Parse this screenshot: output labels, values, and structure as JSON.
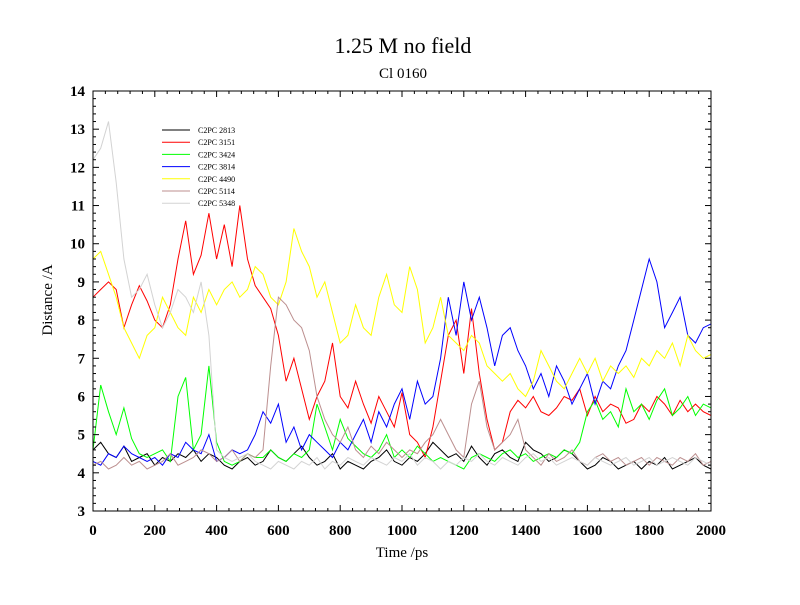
{
  "chart_data": {
    "type": "line",
    "title": "1.25 M no field",
    "subtitle": "Cl 0160",
    "xlabel": "Time /ps",
    "ylabel": "Distance /A",
    "xlim": [
      0,
      2000
    ],
    "ylim": [
      3,
      14
    ],
    "x_ticks": [
      0,
      200,
      400,
      600,
      800,
      1000,
      1200,
      1400,
      1600,
      1800,
      2000
    ],
    "y_ticks": [
      3,
      4,
      5,
      6,
      7,
      8,
      9,
      10,
      11,
      12,
      13,
      14
    ],
    "grid": false,
    "legend_position": "top-left",
    "series": [
      {
        "name": "C2PC 2813",
        "color": "#000000",
        "x": [
          0,
          25,
          50,
          75,
          100,
          125,
          150,
          175,
          200,
          225,
          250,
          275,
          300,
          325,
          350,
          375,
          400,
          425,
          450,
          475,
          500,
          525,
          550,
          575,
          600,
          625,
          650,
          675,
          700,
          725,
          750,
          775,
          800,
          825,
          850,
          875,
          900,
          925,
          950,
          975,
          1000,
          1025,
          1050,
          1075,
          1100,
          1125,
          1150,
          1175,
          1200,
          1225,
          1250,
          1275,
          1300,
          1325,
          1350,
          1375,
          1400,
          1425,
          1450,
          1475,
          1500,
          1525,
          1550,
          1575,
          1600,
          1625,
          1650,
          1675,
          1700,
          1725,
          1750,
          1775,
          1800,
          1825,
          1850,
          1875,
          1900,
          1925,
          1950,
          1975,
          2000
        ],
        "y": [
          4.6,
          4.8,
          4.5,
          4.4,
          4.7,
          4.3,
          4.4,
          4.5,
          4.2,
          4.4,
          4.3,
          4.5,
          4.4,
          4.6,
          4.3,
          4.5,
          4.4,
          4.2,
          4.1,
          4.3,
          4.4,
          4.2,
          4.3,
          4.6,
          4.4,
          4.3,
          4.5,
          4.7,
          4.4,
          4.2,
          4.3,
          4.5,
          4.1,
          4.3,
          4.2,
          4.1,
          4.3,
          4.4,
          4.6,
          4.3,
          4.2,
          4.4,
          4.3,
          4.5,
          4.8,
          4.6,
          4.4,
          4.5,
          4.3,
          4.7,
          4.4,
          4.2,
          4.5,
          4.6,
          4.4,
          4.3,
          4.8,
          4.6,
          4.5,
          4.3,
          4.4,
          4.6,
          4.5,
          4.3,
          4.1,
          4.2,
          4.4,
          4.3,
          4.1,
          4.2,
          4.3,
          4.1,
          4.3,
          4.2,
          4.4,
          4.1,
          4.2,
          4.3,
          4.4,
          4.2,
          4.1
        ]
      },
      {
        "name": "C2PC 3151",
        "color": "#ff0000",
        "x": [
          0,
          25,
          50,
          75,
          100,
          125,
          150,
          175,
          200,
          225,
          250,
          275,
          300,
          325,
          350,
          375,
          400,
          425,
          450,
          475,
          500,
          525,
          550,
          575,
          600,
          625,
          650,
          675,
          700,
          725,
          750,
          775,
          800,
          825,
          850,
          875,
          900,
          925,
          950,
          975,
          1000,
          1025,
          1050,
          1075,
          1100,
          1125,
          1150,
          1175,
          1200,
          1225,
          1250,
          1275,
          1300,
          1325,
          1350,
          1375,
          1400,
          1425,
          1450,
          1475,
          1500,
          1525,
          1550,
          1575,
          1600,
          1625,
          1650,
          1675,
          1700,
          1725,
          1750,
          1775,
          1800,
          1825,
          1850,
          1875,
          1900,
          1925,
          1950,
          1975,
          2000
        ],
        "y": [
          8.6,
          8.8,
          9.0,
          8.8,
          7.8,
          8.4,
          8.9,
          8.5,
          8.0,
          7.8,
          8.4,
          9.6,
          10.6,
          9.2,
          9.7,
          10.8,
          9.6,
          10.5,
          9.4,
          11.0,
          9.6,
          8.9,
          8.6,
          8.3,
          7.6,
          6.4,
          7.0,
          6.2,
          5.4,
          6.0,
          6.4,
          7.4,
          6.0,
          5.7,
          6.4,
          5.8,
          5.3,
          6.0,
          5.6,
          5.2,
          6.1,
          5.0,
          4.8,
          4.4,
          5.2,
          6.4,
          7.6,
          8.0,
          6.6,
          8.3,
          6.6,
          5.4,
          4.6,
          4.8,
          5.6,
          5.9,
          5.7,
          6.0,
          5.6,
          5.5,
          5.7,
          6.0,
          5.9,
          6.2,
          5.5,
          6.0,
          5.6,
          5.8,
          5.7,
          5.3,
          5.4,
          5.8,
          5.6,
          6.0,
          5.8,
          5.5,
          5.9,
          5.6,
          5.8,
          5.6,
          5.5
        ]
      },
      {
        "name": "C2PC 3424",
        "color": "#00ff00",
        "x": [
          0,
          25,
          50,
          75,
          100,
          125,
          150,
          175,
          200,
          225,
          250,
          275,
          300,
          325,
          350,
          375,
          400,
          425,
          450,
          475,
          500,
          525,
          550,
          575,
          600,
          625,
          650,
          675,
          700,
          725,
          750,
          775,
          800,
          825,
          850,
          875,
          900,
          925,
          950,
          975,
          1000,
          1025,
          1050,
          1075,
          1100,
          1125,
          1150,
          1175,
          1200,
          1225,
          1250,
          1275,
          1300,
          1325,
          1350,
          1375,
          1400,
          1425,
          1450,
          1475,
          1500,
          1525,
          1550,
          1575,
          1600,
          1625,
          1650,
          1675,
          1700,
          1725,
          1750,
          1775,
          1800,
          1825,
          1850,
          1875,
          1900,
          1925,
          1950,
          1975,
          2000
        ],
        "y": [
          4.6,
          6.3,
          5.6,
          5.0,
          5.7,
          4.9,
          4.5,
          4.4,
          4.5,
          4.6,
          4.3,
          6.0,
          6.5,
          4.6,
          5.0,
          6.8,
          4.8,
          4.3,
          4.2,
          4.3,
          4.5,
          4.4,
          4.4,
          4.6,
          4.4,
          4.3,
          4.5,
          4.4,
          4.6,
          5.8,
          5.2,
          4.6,
          5.4,
          4.9,
          4.7,
          4.5,
          4.4,
          4.6,
          5.0,
          4.4,
          4.6,
          4.4,
          4.7,
          4.5,
          4.3,
          4.4,
          4.3,
          4.2,
          4.1,
          4.4,
          4.5,
          4.4,
          4.3,
          4.5,
          4.6,
          4.4,
          4.5,
          4.3,
          4.4,
          4.5,
          4.4,
          4.6,
          4.5,
          4.8,
          5.6,
          5.9,
          5.4,
          5.6,
          5.2,
          6.2,
          5.6,
          5.8,
          5.4,
          5.9,
          6.2,
          5.5,
          5.7,
          6.0,
          5.5,
          5.8,
          5.7
        ]
      },
      {
        "name": "C2PC 3814",
        "color": "#0000ff",
        "x": [
          0,
          25,
          50,
          75,
          100,
          125,
          150,
          175,
          200,
          225,
          250,
          275,
          300,
          325,
          350,
          375,
          400,
          425,
          450,
          475,
          500,
          525,
          550,
          575,
          600,
          625,
          650,
          675,
          700,
          725,
          750,
          775,
          800,
          825,
          850,
          875,
          900,
          925,
          950,
          975,
          1000,
          1025,
          1050,
          1075,
          1100,
          1125,
          1150,
          1175,
          1200,
          1225,
          1250,
          1275,
          1300,
          1325,
          1350,
          1375,
          1400,
          1425,
          1450,
          1475,
          1500,
          1525,
          1550,
          1575,
          1600,
          1625,
          1650,
          1675,
          1700,
          1725,
          1750,
          1775,
          1800,
          1825,
          1850,
          1875,
          1900,
          1925,
          1950,
          1975,
          2000
        ],
        "y": [
          4.3,
          4.2,
          4.5,
          4.4,
          4.7,
          4.5,
          4.4,
          4.3,
          4.4,
          4.2,
          4.5,
          4.4,
          4.8,
          4.6,
          4.5,
          5.0,
          4.3,
          4.4,
          4.6,
          4.5,
          4.6,
          5.0,
          5.6,
          5.3,
          5.8,
          4.8,
          5.2,
          4.6,
          5.0,
          4.8,
          4.6,
          4.4,
          4.8,
          4.6,
          5.0,
          5.4,
          4.8,
          5.6,
          5.2,
          5.8,
          6.2,
          5.4,
          6.4,
          5.8,
          6.0,
          7.0,
          8.6,
          7.6,
          9.0,
          8.0,
          8.6,
          7.8,
          6.8,
          7.6,
          7.8,
          7.2,
          6.8,
          6.2,
          6.6,
          6.0,
          6.8,
          6.4,
          5.8,
          6.2,
          6.6,
          5.8,
          6.4,
          6.2,
          6.8,
          7.2,
          8.0,
          8.8,
          9.6,
          9.0,
          7.8,
          8.2,
          8.6,
          7.6,
          7.4,
          7.8,
          7.9
        ]
      },
      {
        "name": "C2PC 4490",
        "color": "#ffff00",
        "x": [
          0,
          25,
          50,
          75,
          100,
          125,
          150,
          175,
          200,
          225,
          250,
          275,
          300,
          325,
          350,
          375,
          400,
          425,
          450,
          475,
          500,
          525,
          550,
          575,
          600,
          625,
          650,
          675,
          700,
          725,
          750,
          775,
          800,
          825,
          850,
          875,
          900,
          925,
          950,
          975,
          1000,
          1025,
          1050,
          1075,
          1100,
          1125,
          1150,
          1175,
          1200,
          1225,
          1250,
          1275,
          1300,
          1325,
          1350,
          1375,
          1400,
          1425,
          1450,
          1475,
          1500,
          1525,
          1550,
          1575,
          1600,
          1625,
          1650,
          1675,
          1700,
          1725,
          1750,
          1775,
          1800,
          1825,
          1850,
          1875,
          1900,
          1925,
          1950,
          1975,
          2000
        ],
        "y": [
          9.6,
          9.8,
          9.2,
          8.6,
          7.8,
          7.4,
          7.0,
          7.6,
          7.8,
          8.6,
          8.2,
          7.8,
          7.6,
          8.6,
          8.2,
          8.8,
          8.4,
          8.8,
          9.0,
          8.6,
          8.8,
          9.4,
          9.2,
          8.6,
          8.4,
          9.0,
          10.4,
          9.8,
          9.4,
          8.6,
          9.0,
          8.2,
          7.4,
          7.6,
          8.4,
          7.8,
          7.6,
          8.6,
          9.2,
          8.4,
          8.2,
          9.4,
          8.8,
          7.4,
          7.8,
          8.6,
          7.6,
          7.4,
          7.2,
          7.6,
          7.4,
          6.8,
          6.6,
          6.4,
          6.6,
          6.2,
          6.0,
          6.4,
          7.2,
          6.8,
          6.4,
          6.2,
          6.6,
          7.0,
          6.6,
          7.0,
          6.4,
          6.8,
          6.6,
          6.8,
          6.5,
          7.0,
          6.8,
          7.2,
          7.0,
          7.4,
          6.8,
          7.6,
          7.2,
          7.0,
          7.1
        ]
      },
      {
        "name": "C2PC 5114",
        "color": "#bc8f8f",
        "x": [
          0,
          25,
          50,
          75,
          100,
          125,
          150,
          175,
          200,
          225,
          250,
          275,
          300,
          325,
          350,
          375,
          400,
          425,
          450,
          475,
          500,
          525,
          550,
          575,
          600,
          625,
          650,
          675,
          700,
          725,
          750,
          775,
          800,
          825,
          850,
          875,
          900,
          925,
          950,
          975,
          1000,
          1025,
          1050,
          1075,
          1100,
          1125,
          1150,
          1175,
          1200,
          1225,
          1250,
          1275,
          1300,
          1325,
          1350,
          1375,
          1400,
          1425,
          1450,
          1475,
          1500,
          1525,
          1550,
          1575,
          1600,
          1625,
          1650,
          1675,
          1700,
          1725,
          1750,
          1775,
          1800,
          1825,
          1850,
          1875,
          1900,
          1925,
          1950,
          1975,
          2000
        ],
        "y": [
          4.2,
          4.3,
          4.1,
          4.2,
          4.4,
          4.2,
          4.3,
          4.1,
          4.2,
          4.3,
          4.5,
          4.2,
          4.3,
          4.4,
          4.6,
          4.5,
          4.3,
          4.4,
          4.6,
          4.3,
          4.5,
          4.4,
          4.6,
          6.8,
          8.6,
          8.4,
          8.0,
          7.8,
          7.2,
          6.0,
          5.4,
          5.0,
          4.8,
          5.2,
          4.6,
          4.4,
          4.7,
          4.5,
          4.8,
          4.6,
          4.4,
          4.6,
          4.5,
          4.8,
          5.0,
          5.4,
          5.0,
          4.6,
          4.4,
          5.8,
          6.4,
          5.2,
          4.6,
          4.8,
          5.0,
          5.4,
          4.6,
          4.4,
          4.2,
          4.5,
          4.3,
          4.4,
          4.6,
          4.3,
          4.2,
          4.4,
          4.5,
          4.3,
          4.4,
          4.2,
          4.3,
          4.4,
          4.2,
          4.4,
          4.3,
          4.2,
          4.4,
          4.3,
          4.5,
          4.2,
          4.3
        ]
      },
      {
        "name": "C2PC 5348",
        "color": "#d3d3d3",
        "x": [
          0,
          25,
          50,
          75,
          100,
          125,
          150,
          175,
          200,
          225,
          250,
          275,
          300,
          325,
          350,
          375,
          400,
          425,
          450,
          475,
          500,
          525,
          550,
          575,
          600,
          625,
          650,
          675,
          700,
          725,
          750,
          775,
          800,
          825,
          850,
          875,
          900,
          925,
          950,
          975,
          1000,
          1025,
          1050,
          1075,
          1100,
          1125,
          1150,
          1175,
          1200,
          1225,
          1250,
          1275,
          1300,
          1325,
          1350,
          1375,
          1400,
          1425,
          1450,
          1475,
          1500,
          1525,
          1550,
          1575,
          1600,
          1625,
          1650,
          1675,
          1700,
          1725,
          1750,
          1775,
          1800,
          1825,
          1850,
          1875,
          1900,
          1925,
          1950,
          1975,
          2000
        ],
        "y": [
          12.2,
          12.5,
          13.2,
          11.6,
          9.6,
          8.6,
          8.8,
          9.2,
          8.4,
          7.8,
          8.2,
          8.8,
          8.6,
          8.2,
          9.0,
          7.6,
          4.6,
          4.4,
          4.3,
          4.4,
          4.5,
          4.3,
          4.2,
          4.1,
          4.3,
          4.2,
          4.1,
          4.3,
          4.2,
          4.4,
          4.1,
          4.3,
          4.2,
          4.4,
          4.3,
          4.2,
          4.4,
          4.3,
          4.2,
          4.4,
          4.3,
          4.5,
          4.2,
          4.4,
          4.3,
          4.1,
          4.3,
          4.2,
          4.4,
          4.3,
          4.5,
          4.3,
          4.2,
          4.4,
          4.3,
          4.2,
          4.4,
          4.5,
          4.3,
          4.4,
          4.2,
          4.3,
          4.4,
          4.3,
          4.2,
          4.4,
          4.3,
          4.2,
          4.3,
          4.4,
          4.2,
          4.3,
          4.4,
          4.2,
          4.3,
          4.4,
          4.3,
          4.2,
          4.4,
          4.3,
          4.2
        ]
      }
    ]
  }
}
